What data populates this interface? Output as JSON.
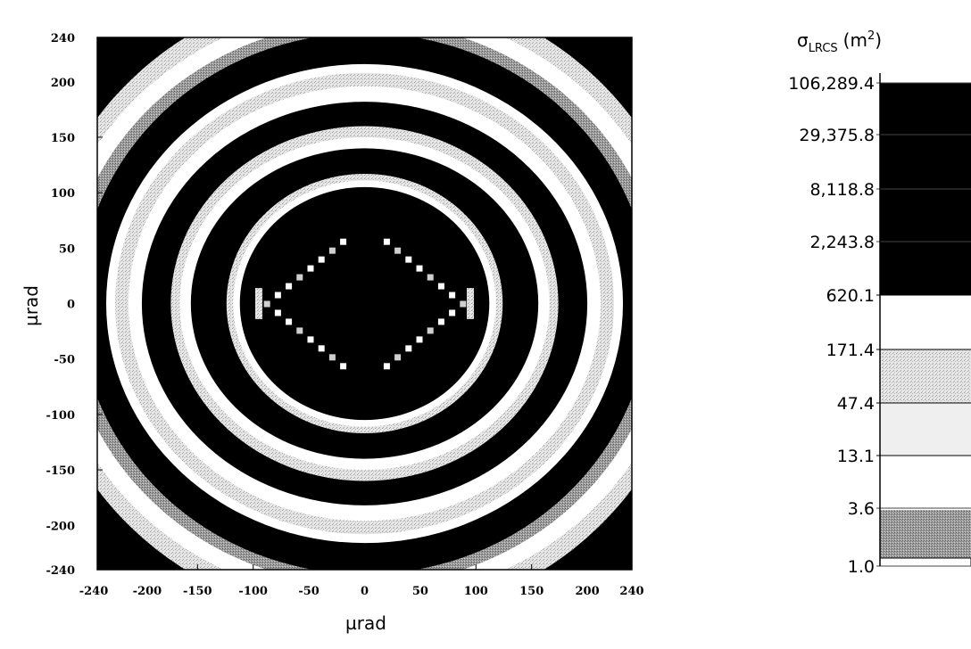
{
  "chart_data": {
    "type": "heatmap",
    "title": "",
    "xlabel": "µrad",
    "ylabel": "µrad",
    "xlim": [
      -240,
      240
    ],
    "ylim": [
      -240,
      240
    ],
    "x_ticks": [
      "-240",
      "-200",
      "-150",
      "-100",
      "-50",
      "0",
      "50",
      "100",
      "150",
      "200",
      "240"
    ],
    "x_tick_values": [
      -240,
      -200,
      -150,
      -100,
      -50,
      0,
      50,
      100,
      150,
      200,
      240
    ],
    "y_ticks": [
      "240",
      "200",
      "150",
      "100",
      "50",
      "0",
      "-50",
      "-100",
      "-150",
      "-200",
      "-240"
    ],
    "y_tick_values": [
      240,
      200,
      150,
      100,
      50,
      0,
      -50,
      -100,
      -150,
      -200,
      -240
    ],
    "grid": false,
    "pattern": "concentric rings of alternating dark / mid-gray / white bands centered at (0,0), with a diamond-shaped dotted outline around the dark center",
    "colorbar": {
      "title_base": "σ",
      "title_sub": "LRCS",
      "title_unit_open": "(m",
      "title_unit_sup": "2",
      "title_unit_close": ")",
      "position": "right",
      "labels": [
        "106,289.4",
        "29,375.8",
        "8,118.8",
        "2,243.8",
        "620.1",
        "171.4",
        "47.4",
        "13.1",
        "3.6",
        "1.0"
      ],
      "values": [
        106289.4,
        29375.8,
        8118.8,
        2243.8,
        620.1,
        171.4,
        47.4,
        13.1,
        3.6,
        1.0
      ],
      "band_colors": [
        "#000000",
        "#000000",
        "#000000",
        "#000000",
        "#ffffff",
        "#d6d6d6",
        "#efefef",
        "#ffffff",
        "#9a9a9a"
      ]
    }
  }
}
